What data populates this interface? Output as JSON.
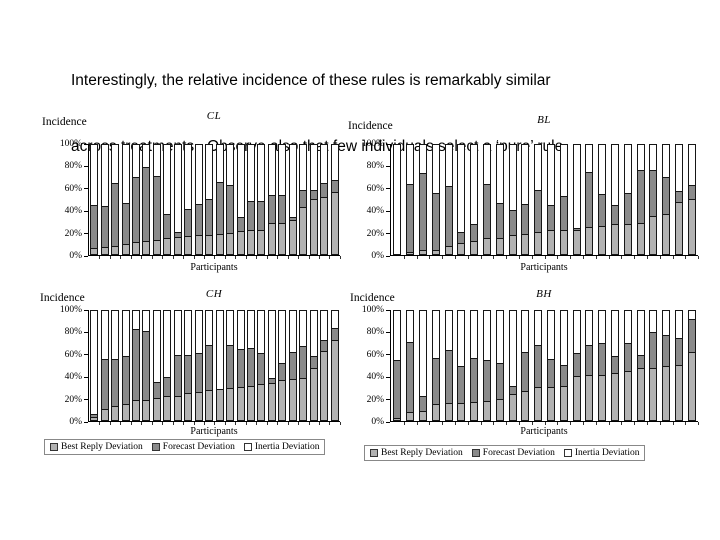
{
  "slide": {
    "caption_line1": "Interestingly, the relative incidence of these rules is remarkably similar",
    "caption_line2": "across treatments.  Observe also that few individuals select a ‘pure’ rule."
  },
  "colors": {
    "best_reply": "#b2b2b2",
    "forecast": "#8a8a8a",
    "inertia": "#ffffff",
    "bar_border": "#161616"
  },
  "legend": {
    "items": [
      {
        "label": "Best Reply Deviation",
        "color": "#b2b2b2"
      },
      {
        "label": "Forecast Deviation",
        "color": "#8a8a8a"
      },
      {
        "label": "Inertia Deviation",
        "color": "#ffffff"
      }
    ]
  },
  "chart_data": [
    {
      "type": "bar",
      "stacked": true,
      "title": "CL",
      "ylabel": "Incidence",
      "xlabel": "Participants",
      "ylim": [
        0,
        100
      ],
      "yticks": [
        "100%",
        "80%",
        "60%",
        "40%",
        "20%",
        "0%"
      ],
      "series": [
        {
          "name": "Best Reply Deviation",
          "color": "#b2b2b2",
          "values": [
            5,
            6,
            7,
            9,
            11,
            12,
            13,
            14,
            15,
            16,
            17,
            17,
            18,
            19,
            21,
            22,
            22,
            28,
            28,
            31,
            42,
            50,
            51,
            56
          ]
        },
        {
          "name": "Forecast Deviation",
          "color": "#8a8a8a",
          "values": [
            39,
            37,
            57,
            37,
            58,
            66,
            57,
            22,
            5,
            25,
            28,
            33,
            47,
            43,
            12,
            26,
            26,
            25,
            25,
            2,
            16,
            8,
            13,
            11
          ]
        },
        {
          "name": "Inertia Deviation",
          "color": "#ffffff",
          "values": [
            56,
            57,
            36,
            54,
            31,
            22,
            30,
            64,
            80,
            59,
            55,
            50,
            35,
            38,
            67,
            52,
            52,
            47,
            47,
            67,
            42,
            42,
            36,
            33
          ]
        }
      ]
    },
    {
      "type": "bar",
      "stacked": true,
      "title": "BL",
      "ylabel": "Incidence",
      "xlabel": "Participants",
      "ylim": [
        0,
        100
      ],
      "yticks": [
        "100%",
        "80%",
        "60%",
        "40%",
        "20%",
        "0%"
      ],
      "series": [
        {
          "name": "Best Reply Deviation",
          "color": "#b2b2b2",
          "values": [
            0,
            2,
            4,
            4,
            7,
            10,
            12,
            14,
            14,
            17,
            18,
            20,
            22,
            22,
            22,
            24,
            25,
            27,
            27,
            28,
            34,
            36,
            47,
            50
          ]
        },
        {
          "name": "Forecast Deviation",
          "color": "#8a8a8a",
          "values": [
            0,
            61,
            69,
            51,
            54,
            10,
            15,
            49,
            32,
            23,
            27,
            38,
            22,
            30,
            1,
            50,
            29,
            17,
            28,
            48,
            42,
            33,
            10,
            12
          ]
        },
        {
          "name": "Inertia Deviation",
          "color": "#ffffff",
          "values": [
            100,
            37,
            27,
            45,
            39,
            80,
            73,
            37,
            54,
            60,
            55,
            42,
            56,
            48,
            77,
            26,
            46,
            56,
            45,
            24,
            24,
            31,
            43,
            38
          ]
        }
      ]
    },
    {
      "type": "bar",
      "stacked": true,
      "title": "CH",
      "ylabel": "Incidence",
      "xlabel": "Participants",
      "ylim": [
        0,
        100
      ],
      "yticks": [
        "100%",
        "80%",
        "60%",
        "40%",
        "20%",
        "0%"
      ],
      "series": [
        {
          "name": "Best Reply Deviation",
          "color": "#b2b2b2",
          "values": [
            3,
            10,
            13,
            14,
            18,
            18,
            20,
            22,
            22,
            24,
            25,
            27,
            28,
            29,
            30,
            31,
            32,
            33,
            36,
            37,
            38,
            47,
            62,
            72
          ]
        },
        {
          "name": "Forecast Deviation",
          "color": "#8a8a8a",
          "values": [
            2,
            45,
            42,
            44,
            64,
            62,
            14,
            17,
            37,
            35,
            35,
            41,
            0,
            39,
            34,
            34,
            28,
            5,
            15,
            24,
            29,
            11,
            10,
            11
          ]
        },
        {
          "name": "Inertia Deviation",
          "color": "#ffffff",
          "values": [
            95,
            45,
            45,
            42,
            18,
            20,
            66,
            61,
            41,
            41,
            40,
            32,
            72,
            32,
            36,
            35,
            40,
            62,
            49,
            39,
            33,
            42,
            28,
            17
          ]
        }
      ]
    },
    {
      "type": "bar",
      "stacked": true,
      "title": "BH",
      "ylabel": "Incidence",
      "xlabel": "Participants",
      "ylim": [
        0,
        100
      ],
      "yticks": [
        "100%",
        "80%",
        "60%",
        "40%",
        "20%",
        "0%"
      ],
      "series": [
        {
          "name": "Best Reply Deviation",
          "color": "#b2b2b2",
          "values": [
            2,
            7,
            8,
            14,
            15,
            15,
            16,
            17,
            19,
            23,
            26,
            30,
            30,
            31,
            40,
            41,
            41,
            42,
            44,
            47,
            47,
            49,
            50,
            61
          ]
        },
        {
          "name": "Forecast Deviation",
          "color": "#8a8a8a",
          "values": [
            52,
            63,
            14,
            42,
            48,
            34,
            40,
            37,
            32,
            8,
            35,
            38,
            25,
            19,
            20,
            27,
            28,
            16,
            25,
            12,
            32,
            28,
            24,
            30
          ]
        },
        {
          "name": "Inertia Deviation",
          "color": "#ffffff",
          "values": [
            46,
            30,
            78,
            44,
            37,
            51,
            44,
            46,
            49,
            69,
            39,
            32,
            45,
            50,
            40,
            32,
            31,
            42,
            31,
            41,
            21,
            23,
            26,
            9
          ]
        }
      ]
    }
  ]
}
